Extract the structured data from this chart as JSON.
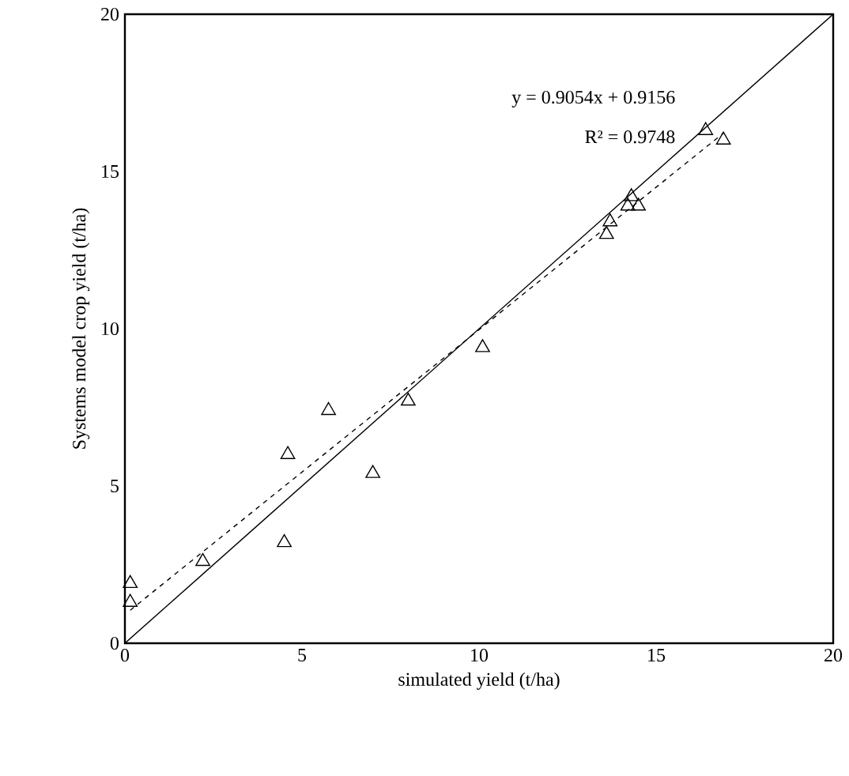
{
  "chart_data": {
    "type": "scatter",
    "xlabel": "simulated yield (t/ha)",
    "ylabel": "Systems model crop yield (t/ha)",
    "xlim": [
      0,
      20
    ],
    "ylim": [
      0,
      20
    ],
    "xticks": [
      0,
      5,
      10,
      15,
      20
    ],
    "yticks": [
      0,
      5,
      10,
      15,
      20
    ],
    "marker": "triangle",
    "annotations": [
      "y = 0.9054x + 0.9156",
      "R² = 0.9748"
    ],
    "series": [
      {
        "color": "#000000",
        "x": [
          0.15,
          0.15,
          2.2,
          4.5,
          4.6,
          5.75,
          7.0,
          8.0,
          10.1,
          13.6,
          13.7,
          14.2,
          14.5,
          14.3,
          16.9,
          16.4
        ],
        "values": [
          1.3,
          1.9,
          2.6,
          3.2,
          6.0,
          7.4,
          5.4,
          7.7,
          9.4,
          13.0,
          13.4,
          13.9,
          13.9,
          14.2,
          16.0,
          16.3
        ]
      },
      {
        "type": "line",
        "color": "#000000",
        "line_style": "solid",
        "marker": "none",
        "x": [
          0,
          20
        ],
        "values": [
          0,
          20
        ]
      },
      {
        "type": "line",
        "color": "#000000",
        "line_style": "dashed",
        "marker": "none",
        "x": [
          0.15,
          16.9
        ],
        "values": [
          1.05,
          16.22
        ]
      }
    ]
  }
}
